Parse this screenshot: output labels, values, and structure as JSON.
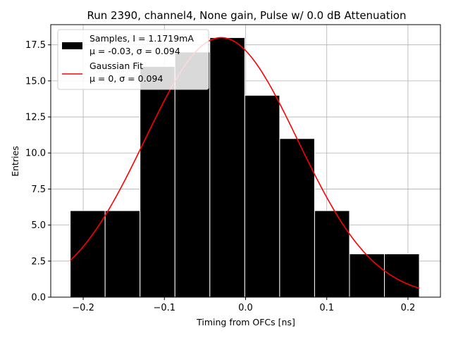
{
  "chart_data": {
    "type": "bar",
    "title": "Run 2390, channel4, None gain, Pulse w/ 0.0 dB Attenuation",
    "xlabel": "Timing from OFCs [ns]",
    "ylabel": "Entries",
    "xlim": [
      -0.24,
      0.24
    ],
    "ylim": [
      0,
      18.9
    ],
    "grid": true,
    "x_ticks": [
      -0.2,
      -0.1,
      0.0,
      0.1,
      0.2
    ],
    "x_tick_labels": [
      "−0.2",
      "−0.1",
      "0.0",
      "0.1",
      "0.2"
    ],
    "y_ticks": [
      0,
      2.5,
      5,
      7.5,
      10,
      12.5,
      15,
      17.5
    ],
    "y_tick_labels": [
      "0.0",
      "2.5",
      "5.0",
      "7.5",
      "10.0",
      "12.5",
      "15.0",
      "17.5"
    ],
    "histogram": {
      "name": "Samples, I = 1.1719mA",
      "stats_label": "μ = -0.03, σ = 0.094",
      "color": "#000000",
      "edge_color": "#ffffff",
      "bin_edges": [
        -0.216,
        -0.173,
        -0.13,
        -0.087,
        -0.044,
        -0.001,
        0.042,
        0.085,
        0.128,
        0.171,
        0.214
      ],
      "counts": [
        6,
        6,
        16,
        17,
        18,
        14,
        11,
        6,
        3,
        3
      ]
    },
    "fit": {
      "name": "Gaussian Fit",
      "stats_label": "μ = 0, σ = 0.094",
      "color": "#ff0000",
      "mu": -0.03,
      "sigma": 0.094,
      "amplitude": 18,
      "x_range": [
        -0.216,
        0.214
      ]
    },
    "legend_position": "upper left"
  }
}
